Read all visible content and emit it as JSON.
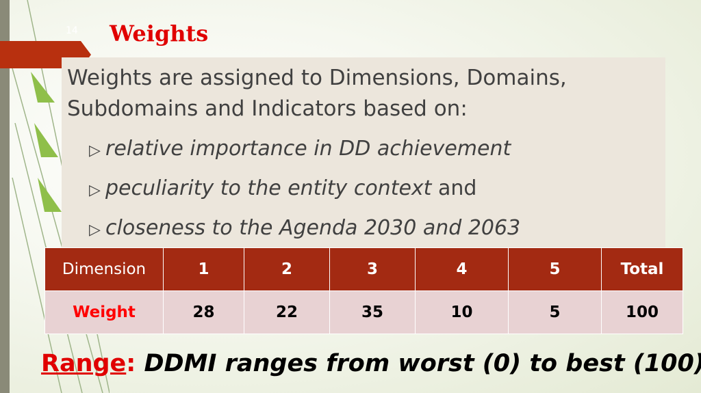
{
  "slide": {
    "number": "14",
    "title": "Weights",
    "intro": "Weights are assigned to Dimensions, Domains, Subdomains and Indicators based on:",
    "bullets": [
      {
        "italic": "relative importance in DD achievement",
        "rest": ""
      },
      {
        "italic": "peculiarity to the entity context",
        "rest": " and"
      },
      {
        "italic": "closeness to the Agenda 2030 and 2063",
        "rest": ""
      }
    ],
    "table": {
      "header": [
        "Dimension",
        "1",
        "2",
        "3",
        "4",
        "5",
        "Total"
      ],
      "row": [
        "Weight",
        "28",
        "22",
        "35",
        "10",
        "5",
        "100"
      ]
    },
    "range": {
      "label": "Range",
      "colon": ":",
      "text": " DDMI ranges from worst (0) to best (100)"
    }
  },
  "colors": {
    "accent_red": "#a32a12",
    "title_red": "#e00000",
    "row_pink": "#e8d2d3"
  }
}
